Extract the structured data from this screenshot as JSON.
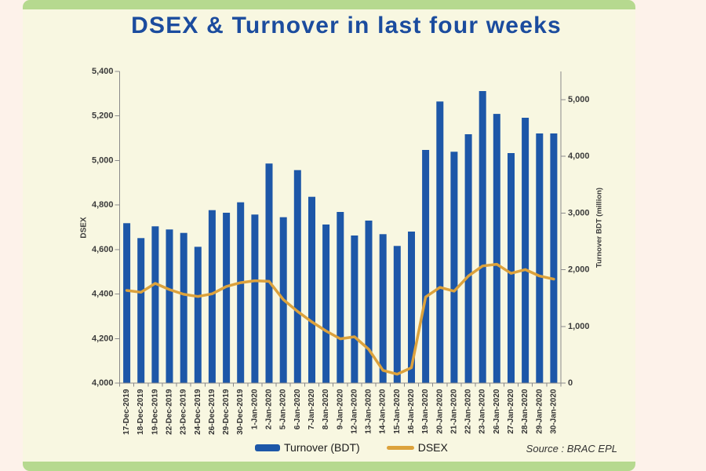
{
  "title": "DSEX & Turnover in last four weeks",
  "source": "Source : BRAC EPL",
  "legend": {
    "turnover_label": "Turnover (BDT)",
    "dsex_label": "DSEX"
  },
  "colors": {
    "bar": "#1d57a8",
    "line": "#dca23c",
    "title": "#1b4c9e",
    "axis": "#8a8a8a",
    "tick_label": "#3b3b3b",
    "card_bg": "#f8f7e1",
    "outer_bg": "#fdf2ea",
    "green_strip": "#b6d98f"
  },
  "chart_data": {
    "type": "bar+line",
    "title": "DSEX & Turnover in last four weeks",
    "categories": [
      "17-Dec-2019",
      "18-Dec-2019",
      "19-Dec-2019",
      "22-Dec-2019",
      "23-Dec-2019",
      "24-Dec-2019",
      "26-Dec-2019",
      "29-Dec-2019",
      "30-Dec-2019",
      "1-Jan-2020",
      "2-Jan-2020",
      "5-Jan-2020",
      "6-Jan-2020",
      "7-Jan-2020",
      "8-Jan-2020",
      "9-Jan-2020",
      "12-Jan-2020",
      "13-Jan-2020",
      "14-Jan-2020",
      "15-Jan-2020",
      "16-Jan-2020",
      "19-Jan-2020",
      "20-Jan-2020",
      "21-Jan-2020",
      "22-Jan-2020",
      "23-Jan-2020",
      "26-Jan-2020",
      "27-Jan-2020",
      "28-Jan-2020",
      "29-Jan-2020",
      "30-Jan-2020"
    ],
    "series": [
      {
        "name": "Turnover (BDT)",
        "type": "bar",
        "axis": "right",
        "values": [
          2821,
          2558,
          2766,
          2710,
          2650,
          2405,
          3051,
          3005,
          3190,
          2973,
          3874,
          2927,
          3758,
          3287,
          2798,
          3019,
          2604,
          2867,
          2627,
          2420,
          2673,
          4114,
          4968,
          4082,
          4391,
          5152,
          4750,
          4058,
          4681,
          4404,
          4404
        ]
      },
      {
        "name": "DSEX",
        "type": "line",
        "axis": "left",
        "values": [
          4416,
          4408,
          4448,
          4420,
          4399,
          4389,
          4401,
          4434,
          4451,
          4460,
          4457,
          4375,
          4322,
          4275,
          4234,
          4199,
          4208,
          4152,
          4057,
          4040,
          4069,
          4387,
          4430,
          4413,
          4481,
          4526,
          4534,
          4493,
          4510,
          4481,
          4467
        ]
      }
    ],
    "left_axis": {
      "label": "DSEX",
      "min": 4000,
      "max": 5400,
      "step": 200
    },
    "right_axis": {
      "label": "Turnover BDT (million)",
      "min": 0,
      "max": 5000,
      "step": 1000
    },
    "legend_position": "bottom",
    "grid": false
  }
}
